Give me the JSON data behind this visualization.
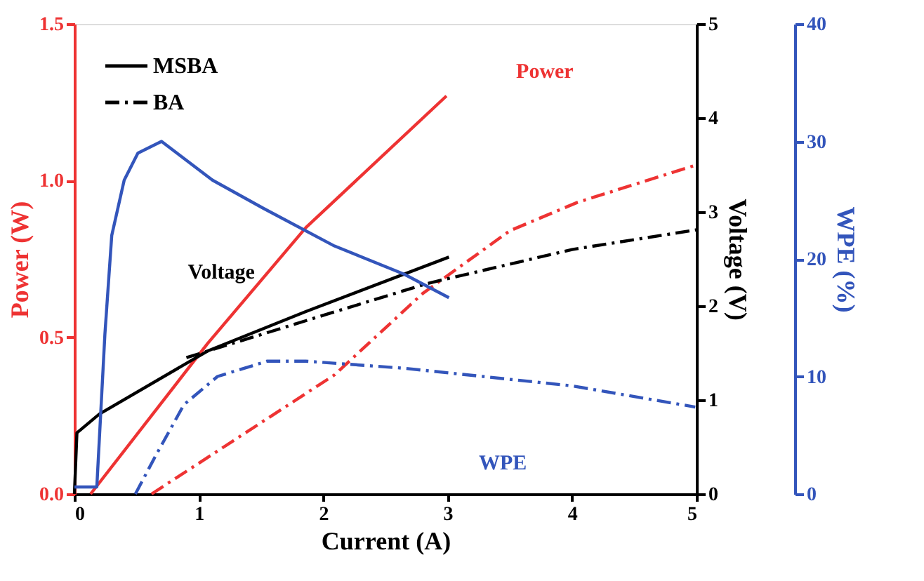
{
  "chart_data": {
    "type": "line",
    "xlabel": "Current (A)",
    "ylabel": "Power (W)",
    "y2label": "Voltage (V)",
    "y3label": "WPE (%)",
    "xlim": [
      0,
      5
    ],
    "xticks": [
      0,
      1,
      2,
      3,
      4,
      5
    ],
    "ylim": [
      0,
      1.5
    ],
    "yticks": [
      {
        "value": 0,
        "label": "0.0"
      },
      0.5,
      {
        "value": 1,
        "label": "1.0"
      },
      1.5
    ],
    "y2lim": [
      0,
      5
    ],
    "y2ticks": [
      0,
      1,
      2,
      3,
      4,
      5
    ],
    "y3lim": [
      0,
      40
    ],
    "y3ticks": [
      0,
      10,
      20,
      30,
      40
    ],
    "legend": "top left",
    "grid": false,
    "marker": "none",
    "annotations": [
      "Power",
      "Voltage",
      "WPE"
    ],
    "series": [
      {
        "axis": "y",
        "color": "#ee3333",
        "line_style": "solid",
        "x": [
          0.13,
          1.07,
          1.86,
          2.99
        ],
        "values": [
          0,
          0.48,
          0.85,
          1.27
        ]
      },
      {
        "axis": "y",
        "color": "#ee3333",
        "line_style": "dashed",
        "x": [
          0.62,
          2.09,
          2.8,
          3.5,
          4.04,
          5.0
        ],
        "values": [
          0,
          0.38,
          0.64,
          0.84,
          0.93,
          1.05
        ]
      },
      {
        "name": "MSBA",
        "axis": "y2",
        "color": "#000000",
        "line_style": "solid",
        "x": [
          0,
          0.02,
          0.2,
          1.07,
          1.86,
          3.01
        ],
        "values": [
          0,
          0.65,
          0.85,
          1.52,
          1.94,
          2.52
        ]
      },
      {
        "name": "BA",
        "axis": "y2",
        "color": "#000000",
        "line_style": "dashed",
        "x": [
          0.9,
          2.0,
          2.84,
          4.0,
          5.0
        ],
        "values": [
          1.45,
          1.9,
          2.24,
          2.6,
          2.81
        ]
      },
      {
        "axis": "y3",
        "color": "#3355bb",
        "line_style": "solid",
        "x": [
          0,
          0.18,
          0.245,
          0.3,
          0.4,
          0.51,
          0.7,
          1.11,
          1.52,
          2.09,
          2.65,
          3.01
        ],
        "values": [
          0.6,
          0.6,
          13.6,
          22,
          26.7,
          29,
          30,
          26.7,
          24.3,
          21.1,
          18.7,
          16.7
        ]
      },
      {
        "axis": "y3",
        "color": "#3355bb",
        "line_style": "dashed",
        "x": [
          0.49,
          0.65,
          0.88,
          1.15,
          1.55,
          1.86,
          2.65,
          4.0,
          4.99
        ],
        "values": [
          0,
          3.2,
          7.6,
          10,
          11.3,
          11.3,
          10.7,
          9.2,
          7.4
        ]
      }
    ]
  }
}
